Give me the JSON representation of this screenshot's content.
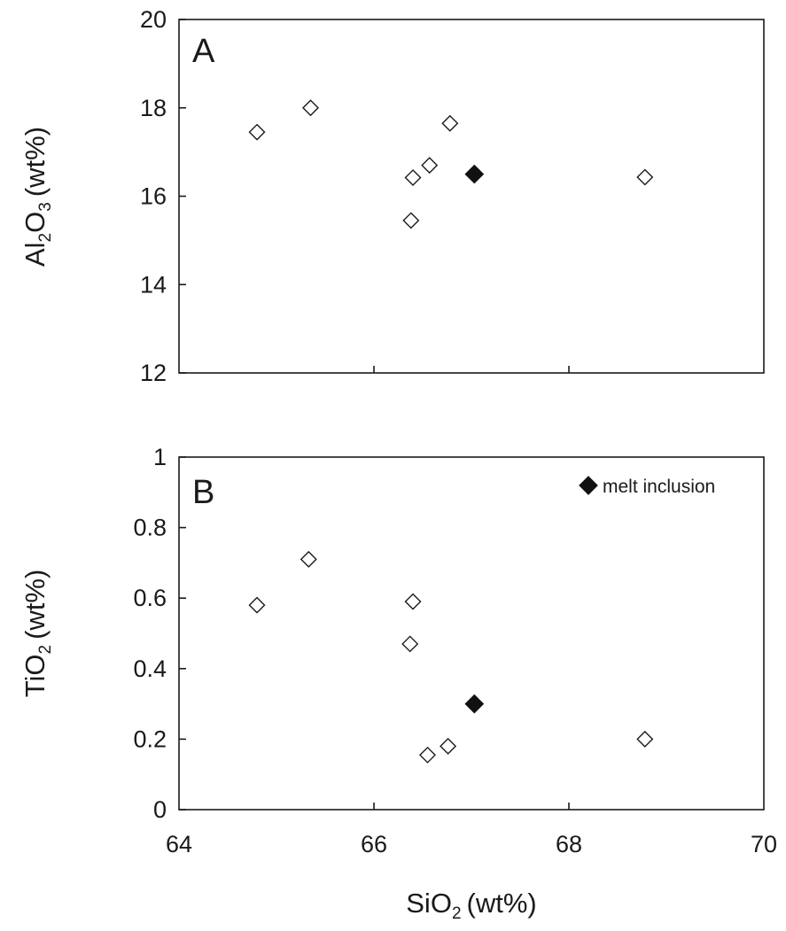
{
  "chart_data": [
    {
      "type": "scatter",
      "panel_label": "A",
      "xlabel": "",
      "ylabel": {
        "pre": "Al",
        "sub1": "2",
        "mid": "O",
        "sub2": "3",
        "post": "(wt%)"
      },
      "xlim": [
        64,
        70
      ],
      "ylim": [
        12,
        20
      ],
      "yticks": [
        "12",
        "14",
        "16",
        "18",
        "20"
      ],
      "grid": false,
      "series": [
        {
          "marker": "open-diamond",
          "points": [
            {
              "x": 64.8,
              "y": 17.45
            },
            {
              "x": 65.35,
              "y": 18.0
            },
            {
              "x": 66.4,
              "y": 16.42
            },
            {
              "x": 66.38,
              "y": 15.45
            },
            {
              "x": 66.57,
              "y": 16.7
            },
            {
              "x": 66.78,
              "y": 17.65
            },
            {
              "x": 68.78,
              "y": 16.43
            }
          ]
        },
        {
          "name": "melt inclusion",
          "marker": "filled-diamond",
          "points": [
            {
              "x": 67.03,
              "y": 16.5
            }
          ]
        }
      ]
    },
    {
      "type": "scatter",
      "panel_label": "B",
      "xlabel": {
        "pre": "SiO",
        "sub1": "2",
        "post": "(wt%)"
      },
      "ylabel": {
        "pre": "TiO",
        "sub1": "2",
        "post": "(wt%)"
      },
      "xlim": [
        64,
        70
      ],
      "ylim": [
        0,
        1
      ],
      "xticks": [
        "64",
        "66",
        "68",
        "70"
      ],
      "yticks": [
        "0",
        "0.2",
        "0.4",
        "0.6",
        "0.8",
        "1"
      ],
      "grid": false,
      "legend": {
        "position": "top-right",
        "entries": [
          {
            "marker": "filled-diamond",
            "label": "melt inclusion"
          }
        ]
      },
      "series": [
        {
          "marker": "open-diamond",
          "points": [
            {
              "x": 64.8,
              "y": 0.58
            },
            {
              "x": 65.33,
              "y": 0.71
            },
            {
              "x": 66.4,
              "y": 0.59
            },
            {
              "x": 66.37,
              "y": 0.47
            },
            {
              "x": 66.55,
              "y": 0.155
            },
            {
              "x": 66.76,
              "y": 0.18
            },
            {
              "x": 68.78,
              "y": 0.2
            }
          ]
        },
        {
          "name": "melt inclusion",
          "marker": "filled-diamond",
          "points": [
            {
              "x": 67.03,
              "y": 0.3
            }
          ]
        }
      ]
    }
  ],
  "colors": {
    "ink": "#1a1a1a",
    "marker_open_fill": "#ffffff",
    "marker_filled": "#111111"
  }
}
